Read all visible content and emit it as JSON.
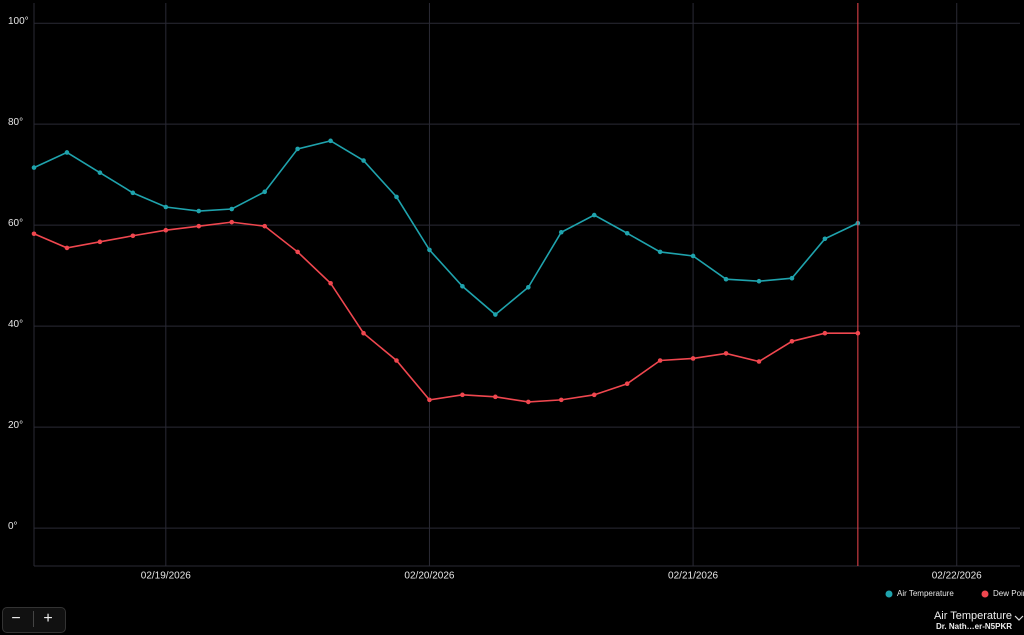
{
  "chart_data": {
    "type": "line",
    "x": [
      18.5,
      18.625,
      18.75,
      18.875,
      19,
      19.125,
      19.25,
      19.375,
      19.5,
      19.625,
      19.75,
      19.875,
      20,
      20.125,
      20.25,
      20.375,
      20.5,
      20.625,
      20.75,
      20.875,
      21,
      21.125,
      21.25,
      21.375,
      21.5,
      21.625
    ],
    "series": [
      {
        "name": "Air Temperature",
        "color": "#1fa3ad",
        "values": [
          71.4,
          74.4,
          70.4,
          66.4,
          63.6,
          62.8,
          63.2,
          66.6,
          75.1,
          76.7,
          72.8,
          65.6,
          55.1,
          47.9,
          42.3,
          47.7,
          58.6,
          62.0,
          58.4,
          54.7,
          53.9,
          49.3,
          48.9,
          49.5,
          57.3,
          60.4
        ]
      },
      {
        "name": "Dew Point",
        "color": "#f0474f",
        "values": [
          58.3,
          55.5,
          56.7,
          57.9,
          59.0,
          59.8,
          60.6,
          59.8,
          54.7,
          48.5,
          38.6,
          33.2,
          25.4,
          26.4,
          26.0,
          25.0,
          25.4,
          26.4,
          28.6,
          33.2,
          33.6,
          34.6,
          33.0,
          37.0,
          38.6,
          38.6
        ]
      }
    ],
    "xlim": [
      18.5,
      22.24
    ],
    "xticks": [
      {
        "value": 19,
        "label": "02/19/2026"
      },
      {
        "value": 20,
        "label": "02/20/2026"
      },
      {
        "value": 21,
        "label": "02/21/2026"
      },
      {
        "value": 22,
        "label": "02/22/2026"
      }
    ],
    "ylim": [
      -7.5,
      104
    ],
    "yticks": [
      {
        "value": 0,
        "label": "0°"
      },
      {
        "value": 20,
        "label": "20°"
      },
      {
        "value": 40,
        "label": "40°"
      },
      {
        "value": 60,
        "label": "60°"
      },
      {
        "value": 80,
        "label": "80°"
      },
      {
        "value": 100,
        "label": "100°"
      }
    ],
    "grid": true
  },
  "controls": {
    "zoom_out": "−",
    "zoom_in": "+"
  },
  "selector": {
    "title": "Air Temperature",
    "subtitle": "Dr. Nath…er-N5PKR"
  }
}
